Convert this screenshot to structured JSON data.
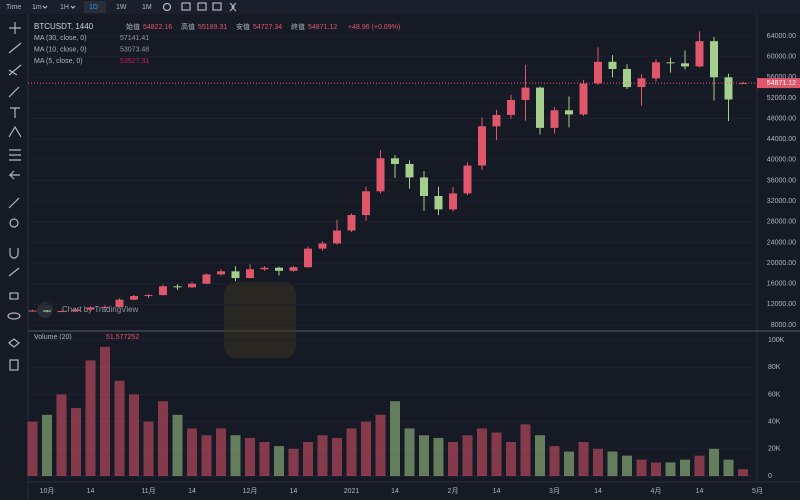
{
  "toolbar": {
    "items": [
      "Time",
      "1m",
      "1H",
      "1D",
      "1W",
      "1M"
    ]
  },
  "legend": {
    "symbol": "BTCUSDT, 1440",
    "open_label": "始值",
    "high_label": "高值",
    "low_label": "安值",
    "close_label": "終值",
    "change": "+48.96 (+0.09%)"
  },
  "watermark": "Chart by TradingView",
  "chart_data": {
    "type": "candlestick",
    "categories": [
      null,
      "10月",
      null,
      null,
      "14",
      null,
      null,
      null,
      "11月",
      null,
      null,
      "14",
      null,
      null,
      null,
      "12月",
      null,
      null,
      "14",
      null,
      null,
      null,
      "2021",
      null,
      null,
      "14",
      null,
      null,
      null,
      "2月",
      null,
      null,
      "14",
      null,
      null,
      null,
      "3月",
      null,
      null,
      "14",
      null,
      null,
      null,
      "4月",
      null,
      null,
      "14",
      null,
      null,
      null,
      "5月"
    ],
    "open": [
      10700,
      10800,
      10600,
      10700,
      11000,
      11400,
      11500,
      12900,
      13600,
      13800,
      15500,
      15300,
      16000,
      17800,
      18400,
      17100,
      18800,
      19100,
      18500,
      19200,
      22800,
      23800,
      26300,
      29300,
      33900,
      40300,
      39200,
      36600,
      33000,
      30400,
      33500,
      38900,
      46500,
      48700,
      51600,
      54000,
      46200,
      49600,
      48800,
      54800,
      59000,
      57600,
      54100,
      55800,
      58900,
      58700,
      58100,
      63000,
      56000,
      54822.16,
      null
    ],
    "high": [
      10950,
      10900,
      10800,
      11100,
      11600,
      11800,
      13200,
      13800,
      14000,
      15800,
      15900,
      16300,
      18000,
      18800,
      19400,
      19800,
      19400,
      19300,
      19400,
      23200,
      24200,
      28400,
      29600,
      34800,
      41900,
      40900,
      39900,
      37800,
      34800,
      34700,
      39500,
      48200,
      49700,
      52600,
      58400,
      54200,
      50200,
      52300,
      55500,
      61800,
      60300,
      58500,
      56600,
      59500,
      59800,
      61200,
      64900,
      63800,
      56700,
      55189.31,
      null
    ],
    "low": [
      10600,
      10500,
      10550,
      10650,
      10950,
      11300,
      11400,
      12800,
      13200,
      13700,
      14800,
      15200,
      15900,
      17600,
      16500,
      17000,
      18500,
      17600,
      18300,
      19100,
      22400,
      23600,
      26000,
      28200,
      33500,
      36500,
      34400,
      30100,
      29300,
      30000,
      33200,
      38000,
      43800,
      48000,
      47600,
      44900,
      45100,
      46300,
      48500,
      54500,
      56000,
      53700,
      50500,
      55200,
      56900,
      57500,
      57900,
      51500,
      47500,
      54727.34,
      null
    ],
    "close": [
      10800,
      10600,
      10700,
      11000,
      11400,
      11500,
      12900,
      13600,
      13800,
      15500,
      15300,
      16000,
      17800,
      18400,
      17100,
      18800,
      19100,
      18500,
      19200,
      22800,
      23800,
      26300,
      29300,
      33900,
      40300,
      39200,
      36600,
      33000,
      30400,
      33500,
      38900,
      46500,
      48700,
      51600,
      54000,
      46200,
      49600,
      48800,
      54800,
      59000,
      57600,
      54100,
      55800,
      58900,
      58700,
      58100,
      63000,
      56000,
      51700,
      54871.12,
      null
    ],
    "up_color": "#e0566b",
    "down_color": "#a5cf8c",
    "ylim": [
      7030,
      68260
    ],
    "yticks": [
      {
        "value": 64000,
        "label": "64000.00"
      },
      {
        "value": 60000,
        "label": "60000.00"
      },
      {
        "value": 56000,
        "label": "56000.00"
      },
      {
        "value": 52000,
        "label": "52000.00"
      },
      {
        "value": 48000,
        "label": "48000.00"
      },
      {
        "value": 44000,
        "label": "44000.00"
      },
      {
        "value": 40000,
        "label": "40000.00"
      },
      {
        "value": 36000,
        "label": "36000.00"
      },
      {
        "value": 32000,
        "label": "32000.00"
      },
      {
        "value": 28000,
        "label": "28000.00"
      },
      {
        "value": 24000,
        "label": "24000.00"
      },
      {
        "value": 20000,
        "label": "20000.00"
      },
      {
        "value": 16000,
        "label": "16000.00"
      },
      {
        "value": 12000,
        "label": "12000.00"
      },
      {
        "value": 8000,
        "label": "8000.00"
      }
    ],
    "indicators": [
      {
        "name": "MA (30, close, 0)",
        "value": 57141.41,
        "color": "#9598a1"
      },
      {
        "name": "MA (10, close, 0)",
        "value": 53073.48,
        "color": "#9598a1"
      },
      {
        "name": "MA (5, close, 0)",
        "value": 53527.31,
        "color": "#c2185b"
      }
    ],
    "volume": {
      "name": "Volume (20)",
      "value": 51.577252,
      "values": [
        40000,
        45000,
        60000,
        50000,
        85000,
        95000,
        70000,
        60000,
        40000,
        55000,
        45000,
        35000,
        30000,
        35000,
        30000,
        28000,
        25000,
        22000,
        20000,
        25000,
        30000,
        28000,
        35000,
        40000,
        45000,
        55000,
        35000,
        30000,
        28000,
        25000,
        30000,
        35000,
        32000,
        25000,
        38000,
        30000,
        22000,
        18000,
        25000,
        20000,
        18000,
        15000,
        12000,
        10000,
        10000,
        12000,
        15000,
        20000,
        12000,
        5000,
        null
      ],
      "ylim": [
        -4400,
        105150
      ],
      "yticks": [
        {
          "value": 100000,
          "label": "100K"
        },
        {
          "value": 80000,
          "label": "80K"
        },
        {
          "value": 60000,
          "label": "60K"
        },
        {
          "value": 40000,
          "label": "40K"
        },
        {
          "value": 20000,
          "label": "20K"
        },
        0
      ]
    }
  }
}
